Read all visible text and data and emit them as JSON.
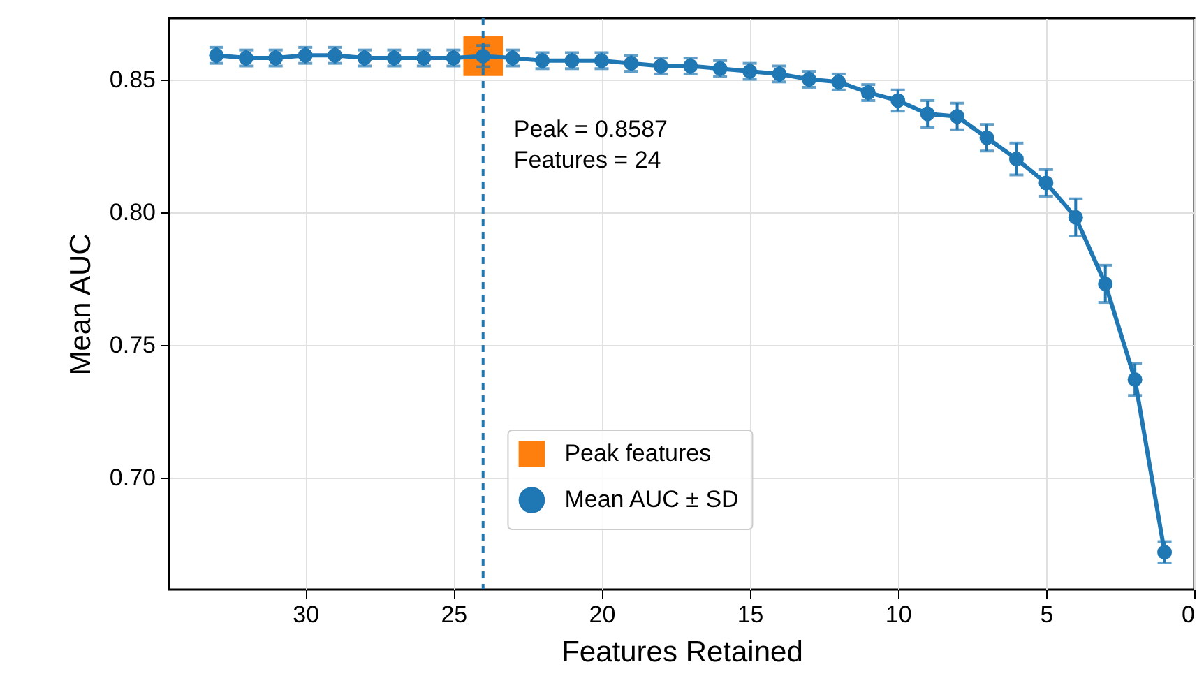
{
  "chart_data": {
    "type": "line",
    "xlabel": "Features Retained",
    "ylabel": "Mean AUC",
    "x": [
      33,
      32,
      31,
      30,
      29,
      28,
      27,
      26,
      25,
      24,
      23,
      22,
      21,
      20,
      19,
      18,
      17,
      16,
      15,
      14,
      13,
      12,
      11,
      10,
      9,
      8,
      7,
      6,
      5,
      4,
      3,
      2,
      1
    ],
    "series": [
      {
        "name": "Peak features",
        "type": "scatter",
        "marker": "square",
        "color": "#ff7f0e",
        "x": [
          24
        ],
        "values": [
          0.8587
        ]
      },
      {
        "name": "Mean AUC ± SD",
        "marker": "circle",
        "color": "#1f77b4",
        "values": [
          0.859,
          0.858,
          0.858,
          0.859,
          0.859,
          0.858,
          0.858,
          0.858,
          0.858,
          0.8587,
          0.858,
          0.857,
          0.857,
          0.857,
          0.856,
          0.855,
          0.855,
          0.854,
          0.853,
          0.852,
          0.85,
          0.849,
          0.845,
          0.842,
          0.837,
          0.836,
          0.828,
          0.82,
          0.811,
          0.798,
          0.773,
          0.737,
          0.672
        ],
        "errors": [
          0.003,
          0.003,
          0.003,
          0.003,
          0.003,
          0.003,
          0.003,
          0.003,
          0.003,
          0.004,
          0.003,
          0.003,
          0.003,
          0.003,
          0.003,
          0.003,
          0.003,
          0.003,
          0.003,
          0.003,
          0.003,
          0.003,
          0.003,
          0.004,
          0.005,
          0.005,
          0.005,
          0.006,
          0.005,
          0.007,
          0.007,
          0.006,
          0.004
        ]
      }
    ],
    "ref_lines": [
      {
        "axis": "x",
        "value": 24,
        "color": "#1f77b4",
        "line_style": "dashed"
      }
    ],
    "annotations": [
      "Peak = 0.8587",
      "Features = 24"
    ],
    "xlim": [
      34.6,
      0
    ],
    "xticks": [
      30,
      25,
      20,
      15,
      10,
      5,
      0
    ],
    "ylim": [
      0.658,
      0.873
    ],
    "yticks": [
      {
        "value": 0.7,
        "label": "0.70"
      },
      {
        "value": 0.75,
        "label": "0.75"
      },
      {
        "value": 0.8,
        "label": "0.80"
      },
      {
        "value": 0.85,
        "label": "0.85"
      }
    ],
    "grid": true,
    "legend": "bottom"
  }
}
